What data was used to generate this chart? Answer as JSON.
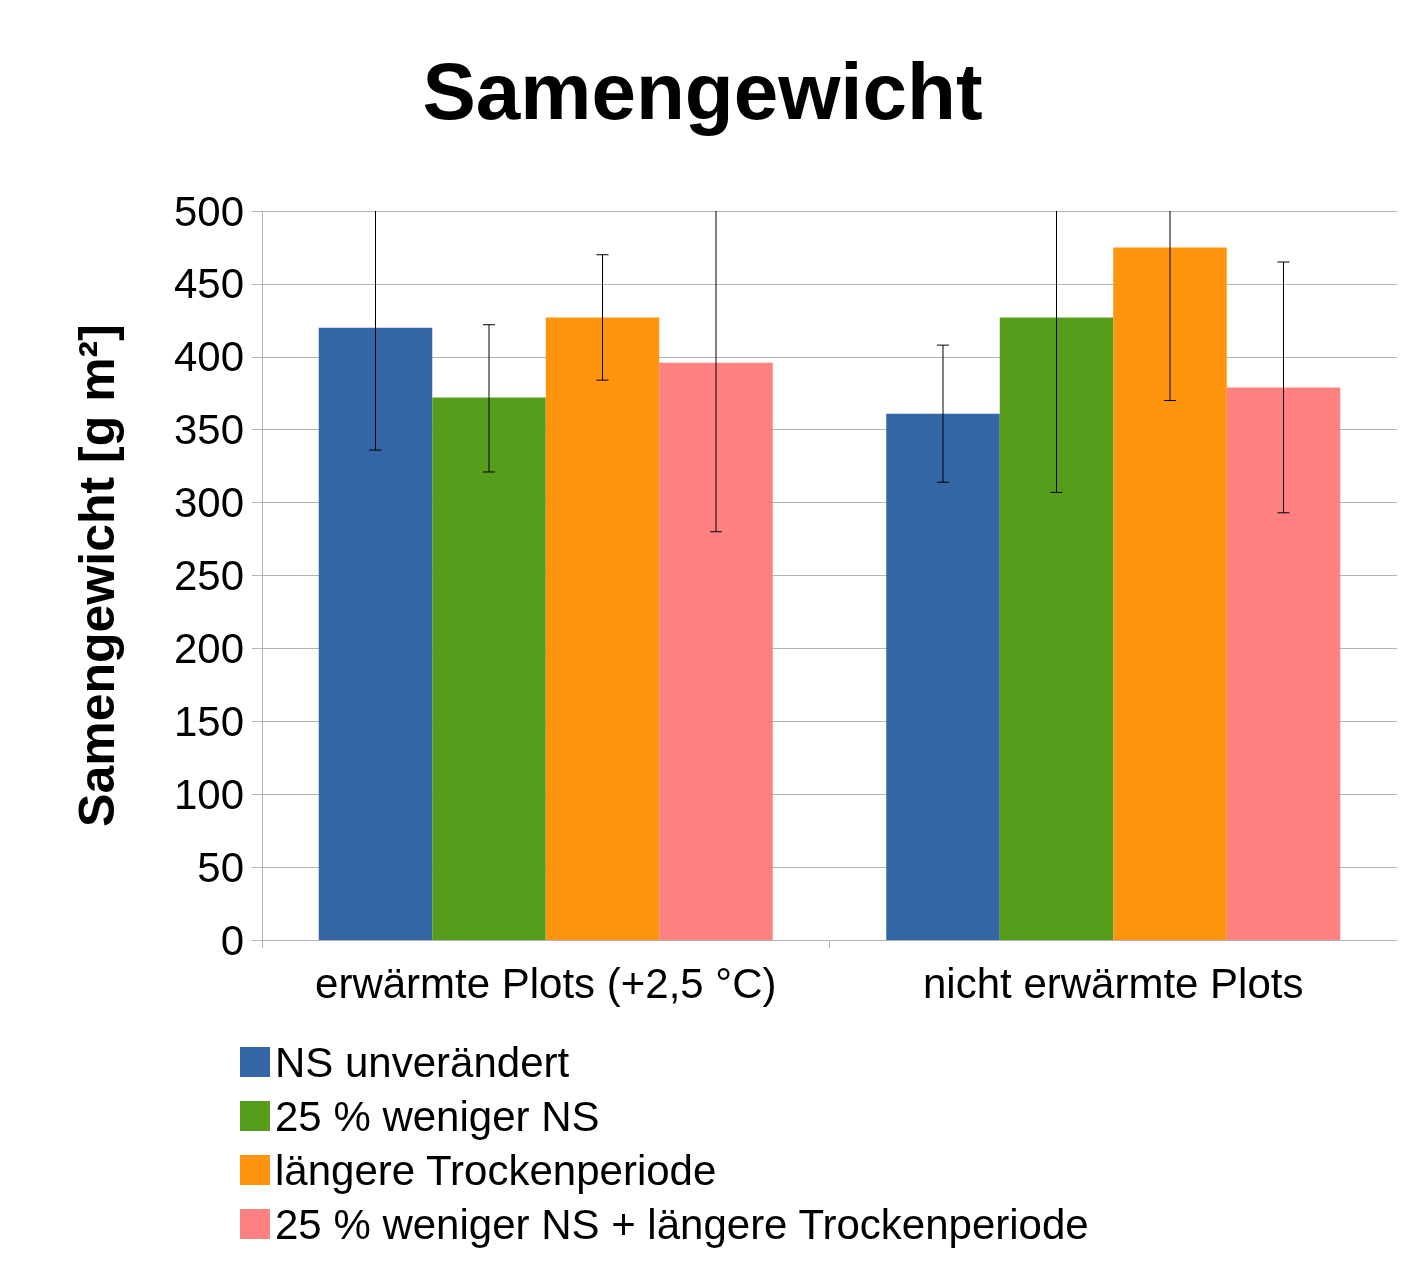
{
  "chart_data": {
    "type": "bar",
    "title": "Samengewicht",
    "ylabel": "Samengewicht [g m²]",
    "categories": [
      "erwärmte Plots (+2,5 °C)",
      "nicht erwärmte Plots"
    ],
    "series": [
      {
        "name": "NS unverändert",
        "color": "#3465a4",
        "values": [
          420,
          361
        ],
        "errors": [
          [
            336,
            500
          ],
          [
            314,
            408
          ]
        ]
      },
      {
        "name": "25 % weniger NS",
        "color": "#579d1c",
        "values": [
          372,
          427
        ],
        "errors": [
          [
            321,
            422
          ],
          [
            307,
            500
          ]
        ]
      },
      {
        "name": "längere Trockenperiode",
        "color": "#ff950e",
        "values": [
          427,
          475
        ],
        "errors": [
          [
            384,
            470
          ],
          [
            370,
            500
          ]
        ]
      },
      {
        "name": "25 % weniger NS + längere Trockenperiode",
        "color": "#ff8080",
        "values": [
          396,
          379
        ],
        "errors": [
          [
            280,
            500
          ],
          [
            293,
            465
          ]
        ]
      }
    ],
    "ylim": [
      0,
      500
    ],
    "yticks": [
      0,
      50,
      100,
      150,
      200,
      250,
      300,
      350,
      400,
      450,
      500
    ],
    "grid": "y",
    "legend": "bottom"
  }
}
